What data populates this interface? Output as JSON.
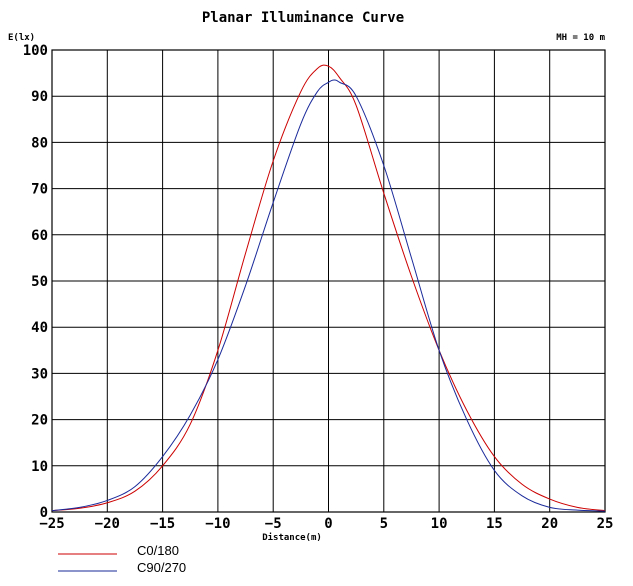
{
  "chart_data": {
    "type": "line",
    "title": "Planar Illuminance Curve",
    "ylabel": "E(lx)",
    "xlabel": "Distance(m)",
    "annotation": "MH = 10 m",
    "xlim": [
      -25,
      25
    ],
    "ylim": [
      0,
      100
    ],
    "x_ticks": [
      -25,
      -20,
      -15,
      -10,
      -5,
      0,
      5,
      10,
      15,
      20,
      25
    ],
    "y_ticks": [
      0,
      10,
      20,
      30,
      40,
      50,
      60,
      70,
      80,
      90,
      100
    ],
    "x_tick_labels": [
      "−25",
      "−20",
      "−15",
      "−10",
      "−5",
      "0",
      "5",
      "10",
      "15",
      "20",
      "25"
    ],
    "y_tick_labels": [
      "0",
      "10",
      "20",
      "30",
      "40",
      "50",
      "60",
      "70",
      "80",
      "90",
      "100"
    ],
    "grid": true,
    "legend_position": "bottom-left",
    "series": [
      {
        "name": "C0/180",
        "color": "#cc0000",
        "x": [
          -25,
          -22.5,
          -20,
          -17.5,
          -15,
          -12.5,
          -10,
          -7.5,
          -5,
          -2.5,
          -1,
          0,
          1,
          2.5,
          5,
          7.5,
          10,
          12.5,
          15,
          17.5,
          20,
          22.5,
          25
        ],
        "y": [
          0.3,
          0.8,
          2,
          4.5,
          10,
          19,
          35,
          56,
          76,
          91,
          96,
          96.5,
          94,
          88,
          69,
          51,
          35,
          22,
          12,
          6,
          2.8,
          1,
          0.3
        ]
      },
      {
        "name": "C90/270",
        "color": "#1a2a9a",
        "x": [
          -25,
          -22.5,
          -20,
          -17.5,
          -15,
          -12.5,
          -10,
          -7.5,
          -5,
          -2.5,
          -1,
          0,
          0.5,
          1,
          2.5,
          5,
          7.5,
          10,
          12.5,
          15,
          17.5,
          20,
          22.5,
          25
        ],
        "y": [
          0.3,
          1,
          2.5,
          5.5,
          12,
          21,
          33,
          49,
          67,
          84,
          91,
          93,
          93.5,
          93,
          90,
          75,
          55,
          35,
          20,
          9,
          3.5,
          1,
          0.4,
          0.2
        ]
      }
    ]
  }
}
